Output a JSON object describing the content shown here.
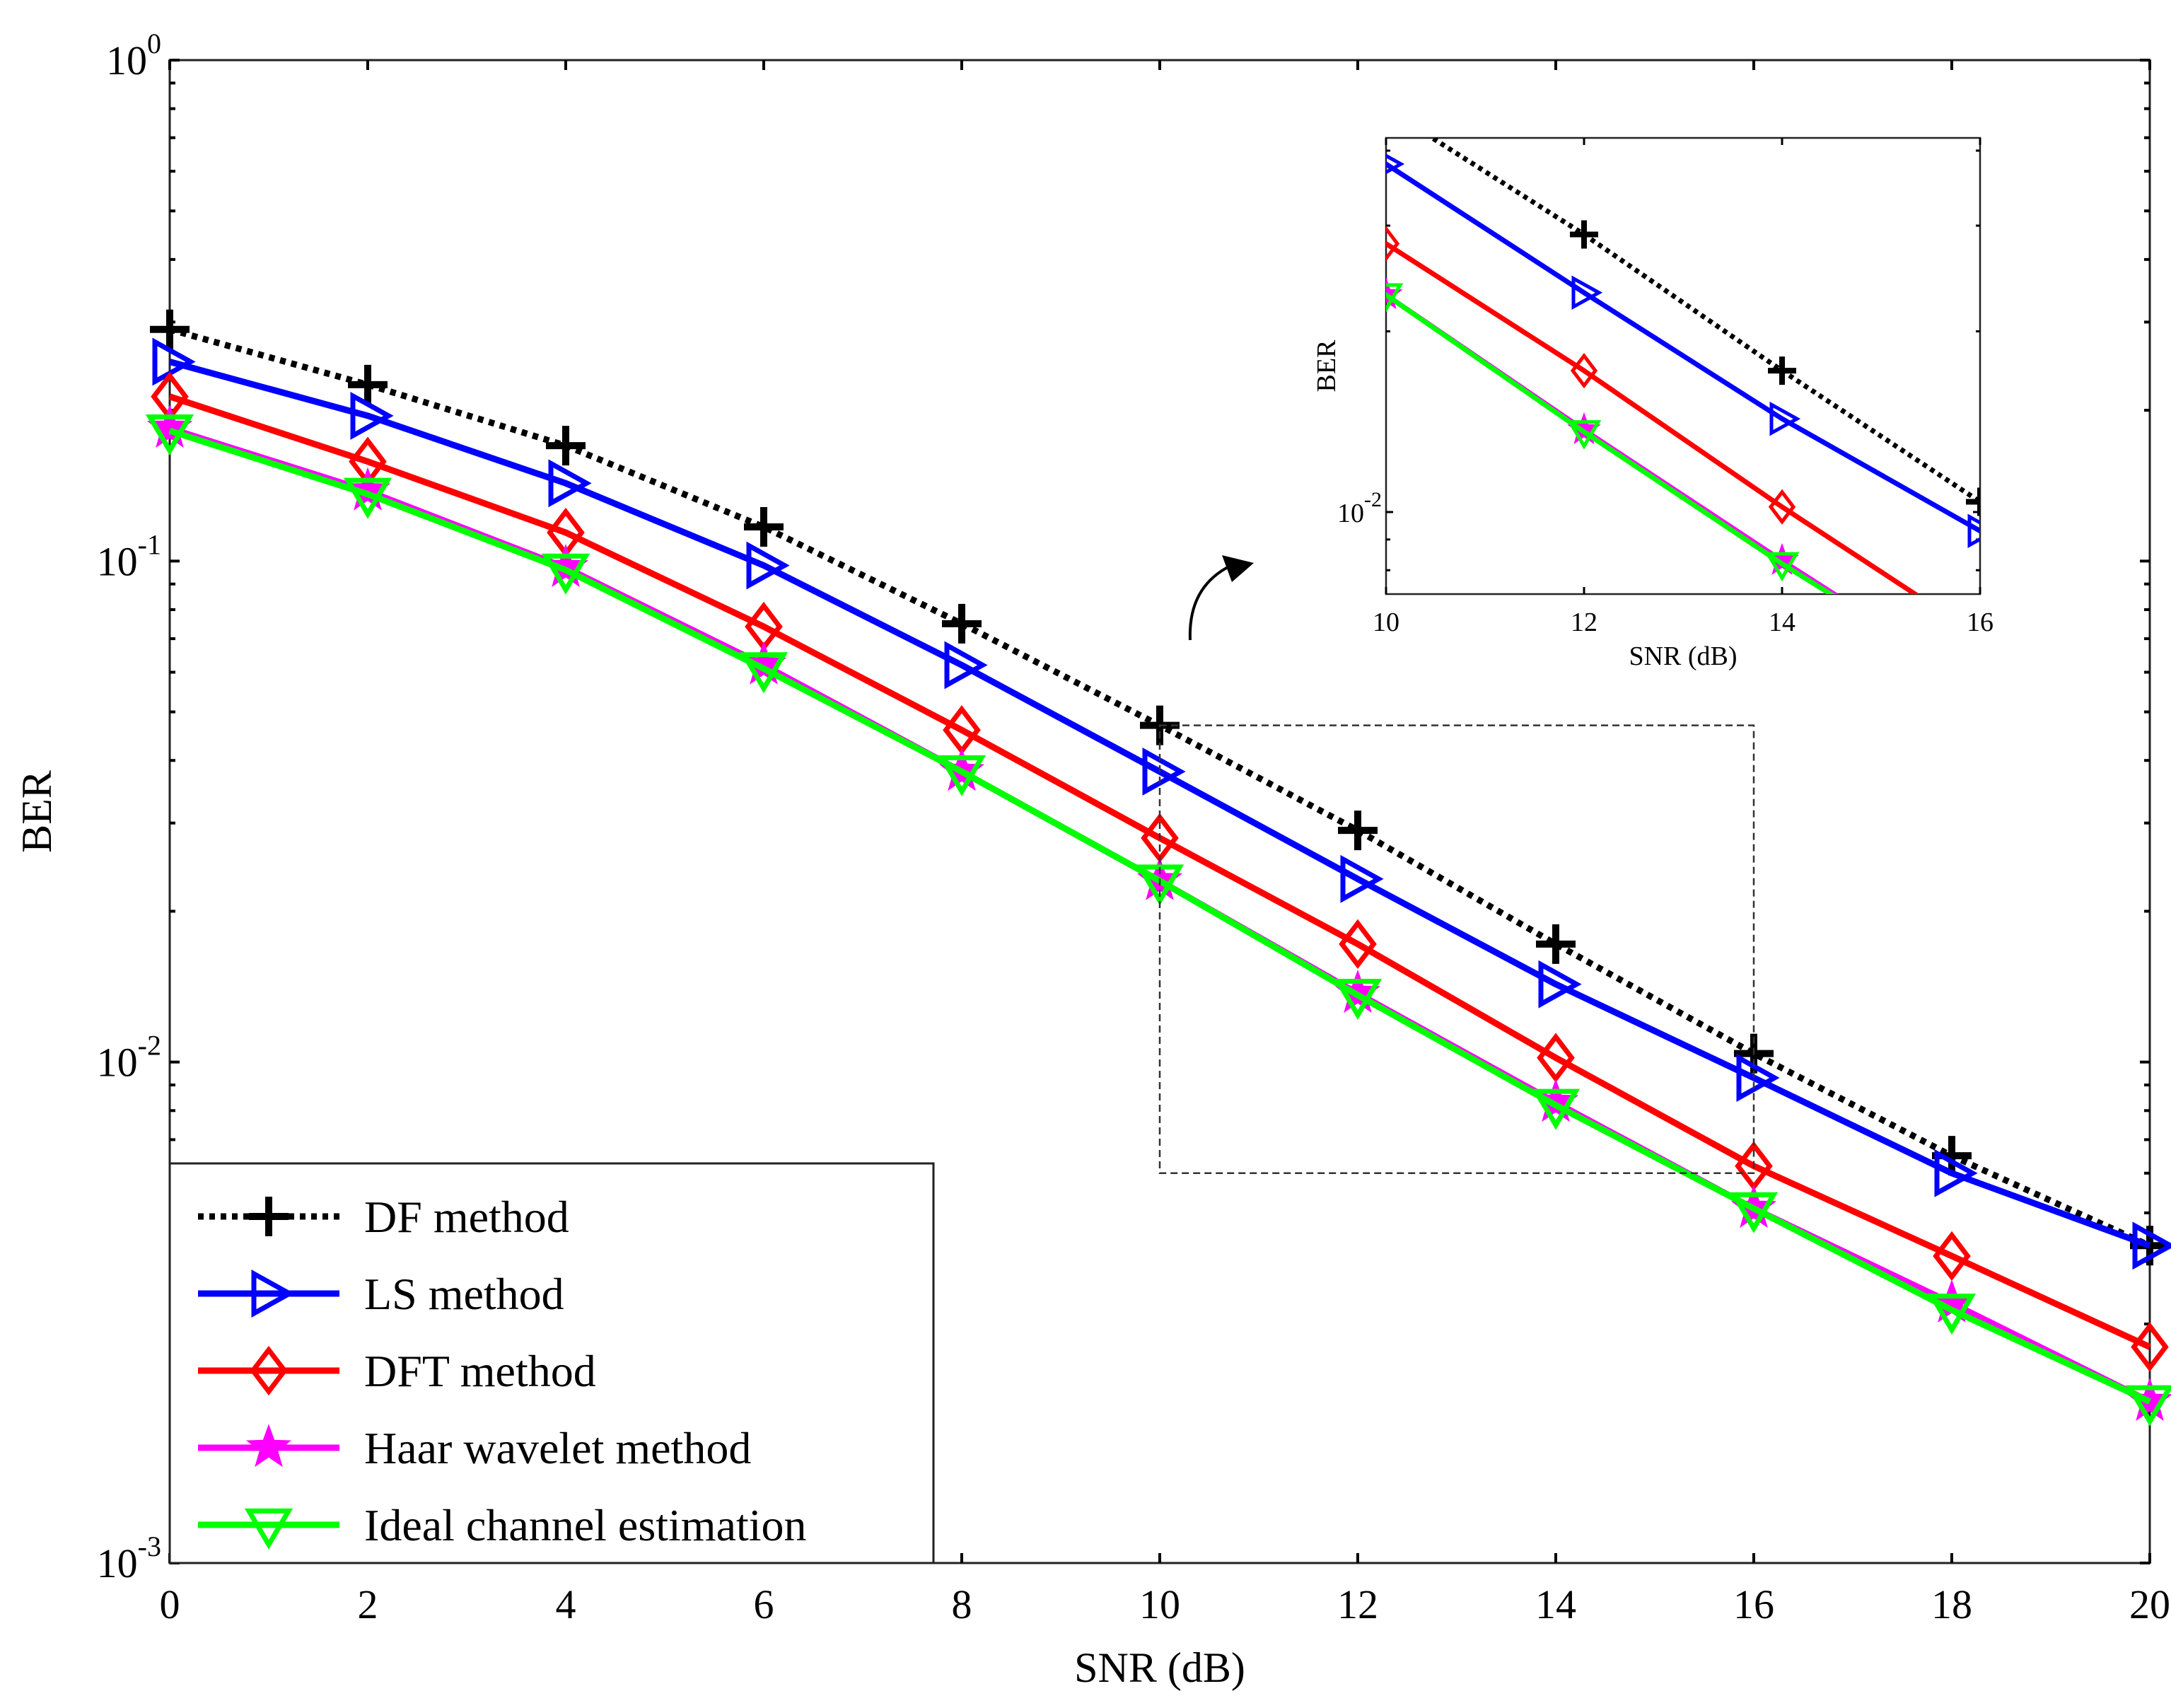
{
  "chart_data": {
    "type": "line",
    "yscale": "log",
    "xlabel": "SNR (dB)",
    "ylabel": "BER",
    "xlim": [
      0,
      20
    ],
    "ylim": [
      0.001,
      1
    ],
    "xticks": [
      0,
      2,
      4,
      6,
      8,
      10,
      12,
      14,
      16,
      18,
      20
    ],
    "yticks": [
      {
        "value": 1,
        "base": "10",
        "exp": "0"
      },
      {
        "value": 0.1,
        "base": "10",
        "exp": "-1"
      },
      {
        "value": 0.01,
        "base": "10",
        "exp": "-2"
      },
      {
        "value": 0.001,
        "base": "10",
        "exp": "-3"
      }
    ],
    "x": [
      0,
      2,
      4,
      6,
      8,
      10,
      12,
      14,
      16,
      18,
      20
    ],
    "series": [
      {
        "name": "DF method",
        "color": "#000000",
        "style": "dotted",
        "marker": "plus",
        "values": [
          0.29,
          0.225,
          0.17,
          0.117,
          0.075,
          0.047,
          0.029,
          0.0172,
          0.0104,
          0.0065,
          0.0043
        ]
      },
      {
        "name": "LS method",
        "color": "#0000ff",
        "style": "solid",
        "marker": "triangle-right",
        "values": [
          0.25,
          0.195,
          0.143,
          0.098,
          0.062,
          0.038,
          0.0232,
          0.0143,
          0.0093,
          0.006,
          0.0043
        ]
      },
      {
        "name": "DFT method",
        "color": "#ff0000",
        "style": "solid",
        "marker": "diamond",
        "values": [
          0.213,
          0.158,
          0.114,
          0.074,
          0.046,
          0.028,
          0.0172,
          0.0102,
          0.0062,
          0.0041,
          0.0027
        ]
      },
      {
        "name": "Haar wavelet method",
        "color": "#ff00ff",
        "style": "solid",
        "marker": "star",
        "values": [
          0.184,
          0.138,
          0.097,
          0.062,
          0.038,
          0.023,
          0.0137,
          0.0083,
          0.0051,
          0.0033,
          0.0021
        ]
      },
      {
        "name": "Ideal channel estimation",
        "color": "#00ff00",
        "style": "solid",
        "marker": "triangle-down",
        "values": [
          0.182,
          0.136,
          0.096,
          0.061,
          0.038,
          0.023,
          0.0136,
          0.0082,
          0.0051,
          0.0032,
          0.0021
        ]
      }
    ],
    "legend": {
      "position": "bottom-left"
    },
    "zoom_box": {
      "xlim": [
        10,
        16
      ],
      "ylim": [
        0.006,
        0.047
      ]
    },
    "inset": {
      "xlabel": "SNR (dB)",
      "ylabel": "BER",
      "xlim": [
        10,
        16
      ],
      "ylim": [
        0.0073,
        0.042
      ],
      "xticks": [
        10,
        12,
        14,
        16
      ],
      "yticks": [
        {
          "value": 0.01,
          "base": "10",
          "exp": "-2"
        }
      ]
    }
  }
}
